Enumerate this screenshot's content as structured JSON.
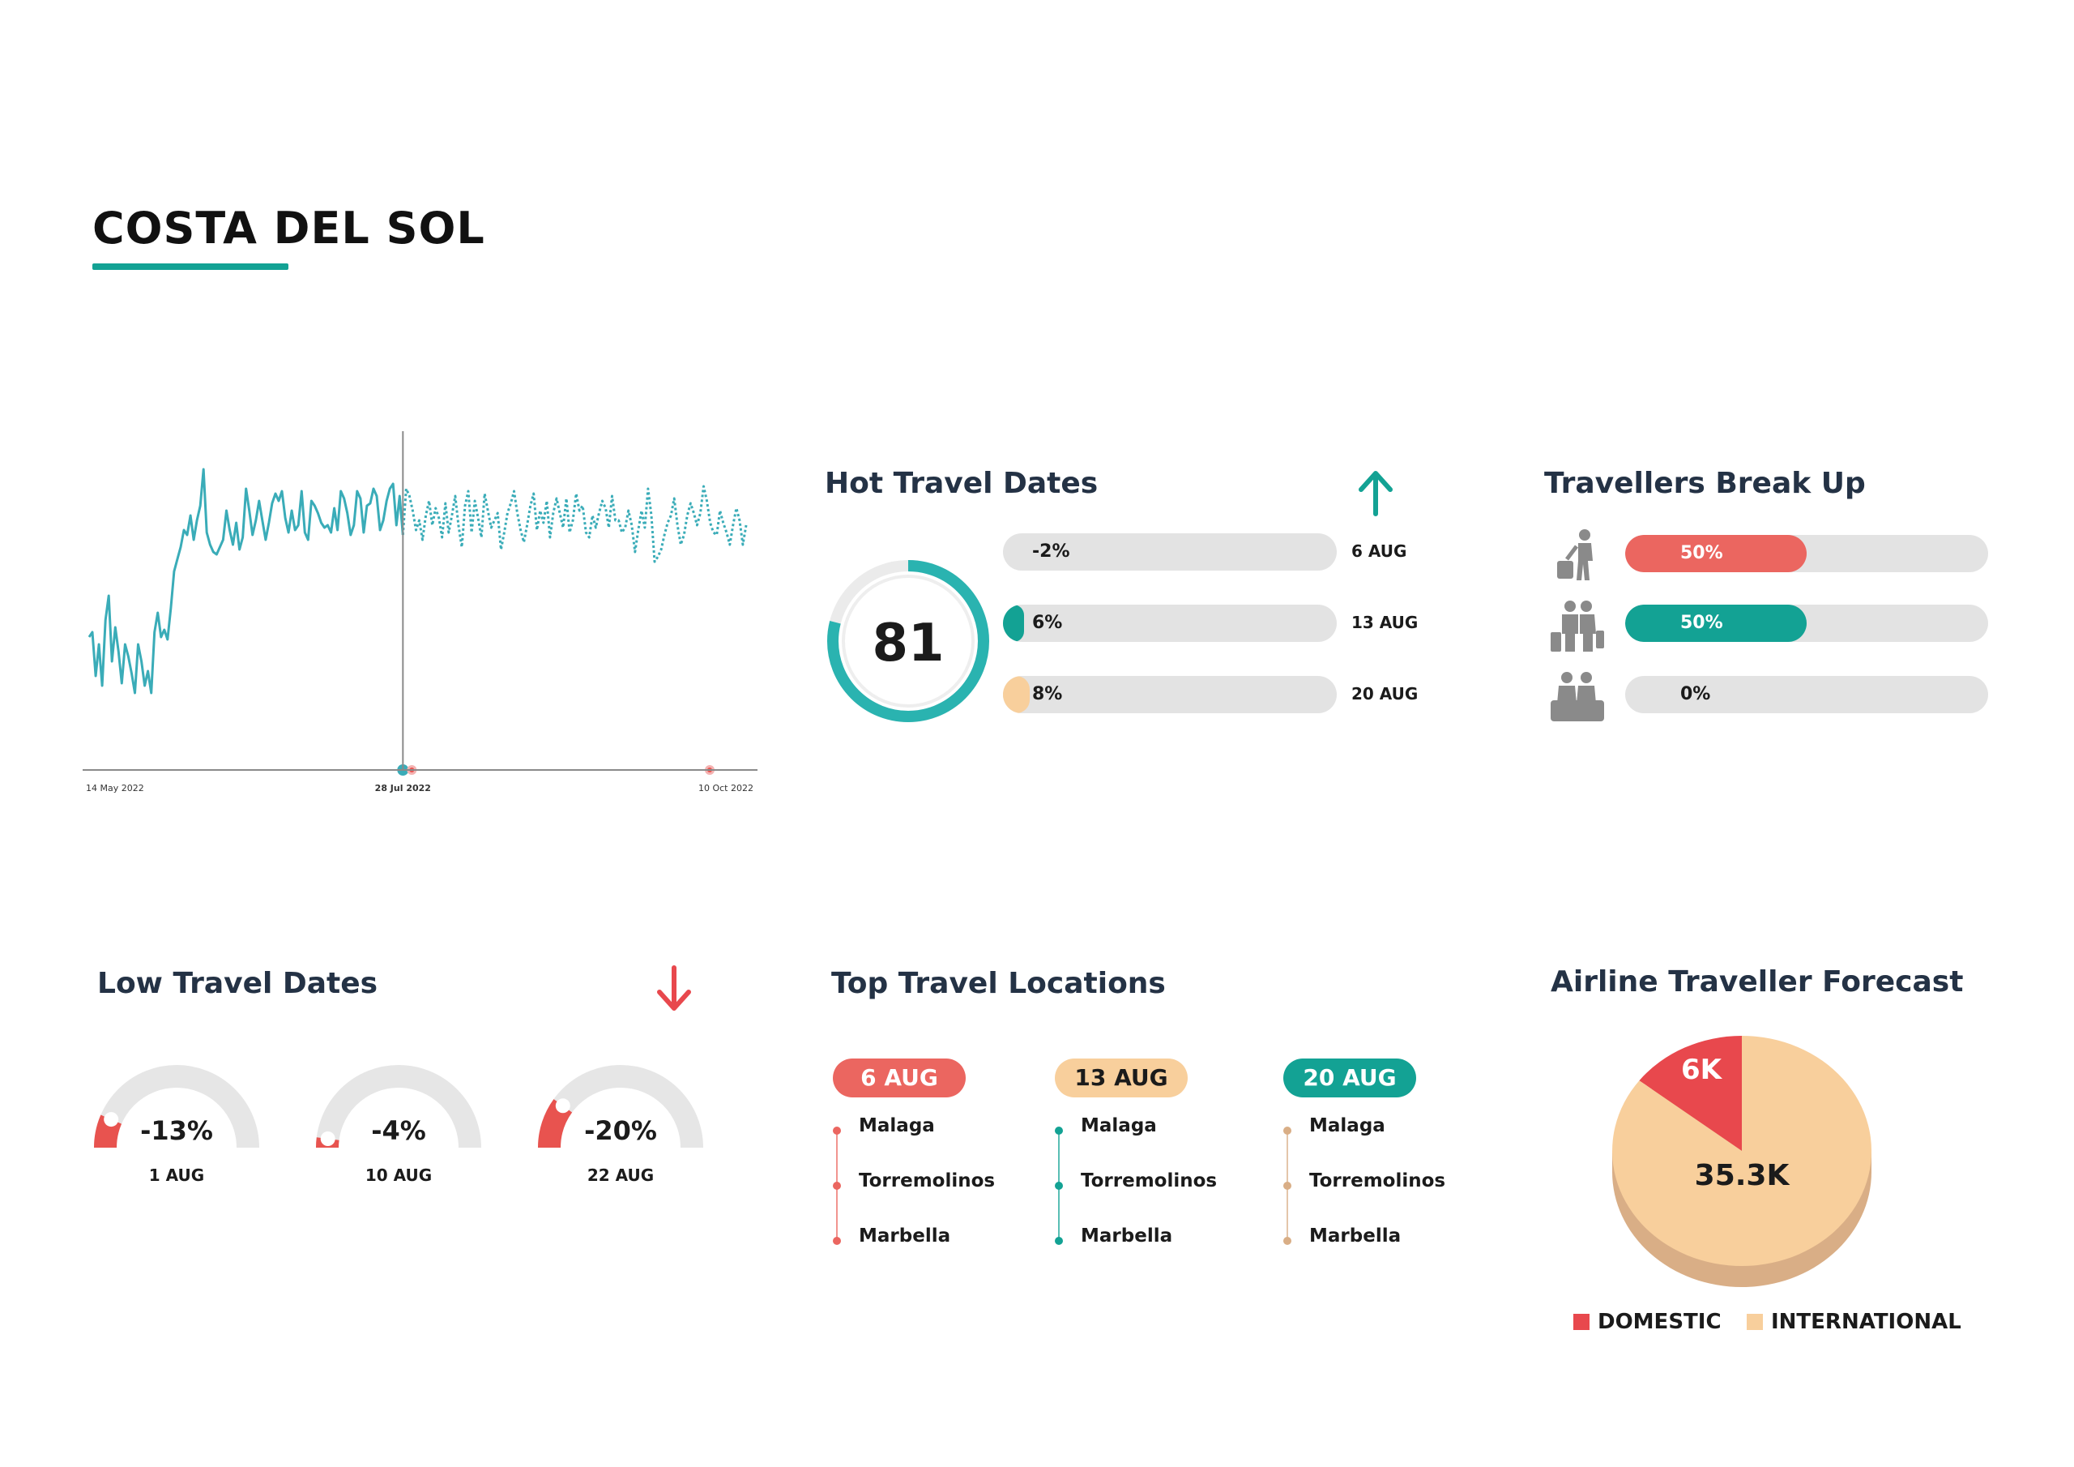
{
  "page": {
    "title": "COSTA DEL SOL"
  },
  "colors": {
    "teal": "#13a294",
    "line": "#3aacb8",
    "red": "#e8534f",
    "coral": "#eb6660",
    "peach": "#f8cf9c",
    "track": "#e3e3e3",
    "navy": "#243245"
  },
  "hot_travel": {
    "title": "Hot Travel Dates",
    "trend_icon": "arrow-up-icon",
    "score": "81",
    "score_fraction": 0.79,
    "rows": [
      {
        "pct": "-2%",
        "fill": 0.0,
        "color": "#13a294",
        "date": "6 AUG"
      },
      {
        "pct": "6%",
        "fill": 0.06,
        "color": "#13a294",
        "date": "13 AUG"
      },
      {
        "pct": "8%",
        "fill": 0.08,
        "color": "#f8cf9c",
        "date": "20 AUG"
      }
    ]
  },
  "travellers": {
    "title": "Travellers Break Up",
    "rows": [
      {
        "icon": "solo-traveller-icon",
        "pct": "50%",
        "fill": 0.5,
        "color": "#eb6660"
      },
      {
        "icon": "couple-traveller-icon",
        "pct": "50%",
        "fill": 0.5,
        "color": "#13a294"
      },
      {
        "icon": "family-traveller-icon",
        "pct": "0%",
        "fill": 0.0,
        "color": "#eb6660"
      }
    ]
  },
  "low_travel": {
    "title": "Low Travel Dates",
    "trend_icon": "arrow-down-icon",
    "gauges": [
      {
        "value": "-13%",
        "date": "1 AUG",
        "fraction": 0.13
      },
      {
        "value": "-4%",
        "date": "10 AUG",
        "fraction": 0.04
      },
      {
        "value": "-20%",
        "date": "22 AUG",
        "fraction": 0.2
      }
    ]
  },
  "top_locations": {
    "title": "Top Travel Locations",
    "columns": [
      {
        "date": "6 AUG",
        "color": "#eb6660",
        "text_dark": false,
        "dot": "#eb6660",
        "items": [
          "Malaga",
          "Torremolinos",
          "Marbella"
        ]
      },
      {
        "date": "13 AUG",
        "color": "#f8cf9c",
        "text_dark": true,
        "dot": "#13a294",
        "items": [
          "Malaga",
          "Torremolinos",
          "Marbella"
        ]
      },
      {
        "date": "20 AUG",
        "color": "#13a294",
        "text_dark": false,
        "dot": "#d9ae86",
        "items": [
          "Malaga",
          "Torremolinos",
          "Marbella"
        ]
      }
    ]
  },
  "forecast": {
    "title": "Airline Traveller Forecast",
    "domestic_label": "6K",
    "international_label": "35.3K",
    "legend": [
      {
        "label": "DOMESTIC",
        "color": "#e8484d"
      },
      {
        "label": "INTERNATIONAL",
        "color": "#f8cf9c"
      }
    ]
  },
  "chart_data": [
    {
      "type": "line",
      "title": "",
      "xlabel": "",
      "ylabel": "",
      "x_ticks": [
        "14 May 2022",
        "28 Jul 2022",
        "10 Oct 2022"
      ],
      "highlight_tick": "28 Jul 2022",
      "ylim": [
        0,
        100
      ],
      "series": [
        {
          "name": "actual",
          "style": "solid",
          "values": [
            28,
            30,
            12,
            25,
            8,
            35,
            45,
            18,
            32,
            22,
            9,
            25,
            20,
            13,
            5,
            25,
            18,
            8,
            14,
            5,
            30,
            38,
            28,
            31,
            27,
            40,
            55,
            60,
            65,
            72,
            70,
            78,
            68,
            76,
            82,
            97,
            71,
            66,
            63,
            62,
            65,
            68,
            80,
            72,
            66,
            75,
            64,
            69,
            89,
            80,
            70,
            76,
            84,
            76,
            68,
            75,
            83,
            87,
            84,
            88,
            77,
            71,
            80,
            72,
            74,
            88,
            71,
            68,
            84,
            82,
            79,
            75,
            73,
            74,
            71,
            81,
            72,
            88,
            85,
            79,
            70,
            74,
            88,
            85,
            71,
            82,
            83,
            89,
            86,
            72,
            76,
            84,
            89,
            91,
            74,
            86,
            70
          ]
        },
        {
          "name": "forecast",
          "style": "dotted",
          "values": [
            70,
            89,
            86,
            80,
            72,
            76,
            68,
            78,
            84,
            74,
            81,
            77,
            69,
            83,
            71,
            78,
            86,
            74,
            65,
            82,
            88,
            71,
            84,
            77,
            69,
            87,
            80,
            73,
            76,
            79,
            64,
            71,
            79,
            83,
            88,
            79,
            72,
            67,
            74,
            82,
            87,
            72,
            80,
            75,
            84,
            69,
            79,
            85,
            79,
            73,
            85,
            71,
            76,
            87,
            80,
            82,
            71,
            69,
            78,
            73,
            79,
            84,
            81,
            73,
            86,
            76,
            76,
            71,
            73,
            80,
            74,
            63,
            72,
            80,
            73,
            89,
            78,
            59,
            61,
            64,
            70,
            75,
            78,
            85,
            74,
            66,
            70,
            78,
            83,
            79,
            74,
            79,
            90,
            84,
            75,
            71,
            70,
            80,
            75,
            71,
            66,
            74,
            81,
            76,
            66,
            74
          ]
        }
      ]
    },
    {
      "type": "pie",
      "title": "Airline Traveller Forecast",
      "labels": [
        "DOMESTIC",
        "INTERNATIONAL"
      ],
      "values": [
        6,
        35.3
      ],
      "value_labels": [
        "6K",
        "35.3K"
      ]
    }
  ]
}
